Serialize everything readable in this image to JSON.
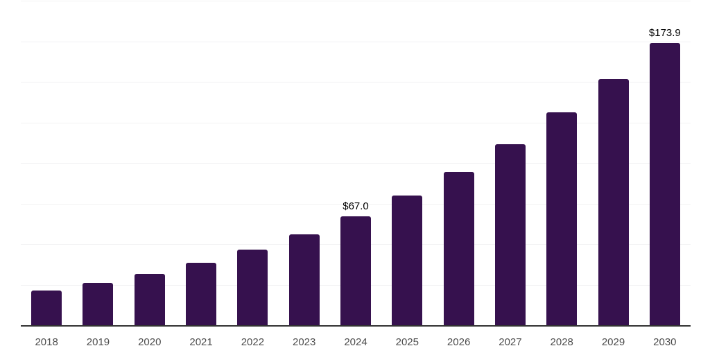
{
  "chart": {
    "colors": {
      "bar": "#36114E",
      "axis_line": "#333333",
      "gridline": "#F2F2F3",
      "tick_label": "#4D4D4D",
      "data_label": "#000000",
      "background": "#FFFFFF"
    }
  },
  "chart_data": {
    "type": "bar",
    "categories": [
      "2018",
      "2019",
      "2020",
      "2021",
      "2022",
      "2023",
      "2024",
      "2025",
      "2026",
      "2027",
      "2028",
      "2029",
      "2030"
    ],
    "values": [
      21.3,
      26.0,
      31.6,
      38.3,
      46.5,
      55.9,
      67.0,
      79.9,
      94.5,
      111.6,
      131.3,
      151.9,
      173.9
    ],
    "bar_labels": [
      "",
      "",
      "",
      "",
      "",
      "",
      "$67.0",
      "",
      "",
      "",
      "",
      "",
      "$173.9"
    ],
    "ylim": [
      0,
      200
    ],
    "grid_step": 25,
    "grid": "horizontal",
    "legend_position": "none",
    "y_tick_labels_visible": false,
    "x_tick_labels_visible": true
  }
}
